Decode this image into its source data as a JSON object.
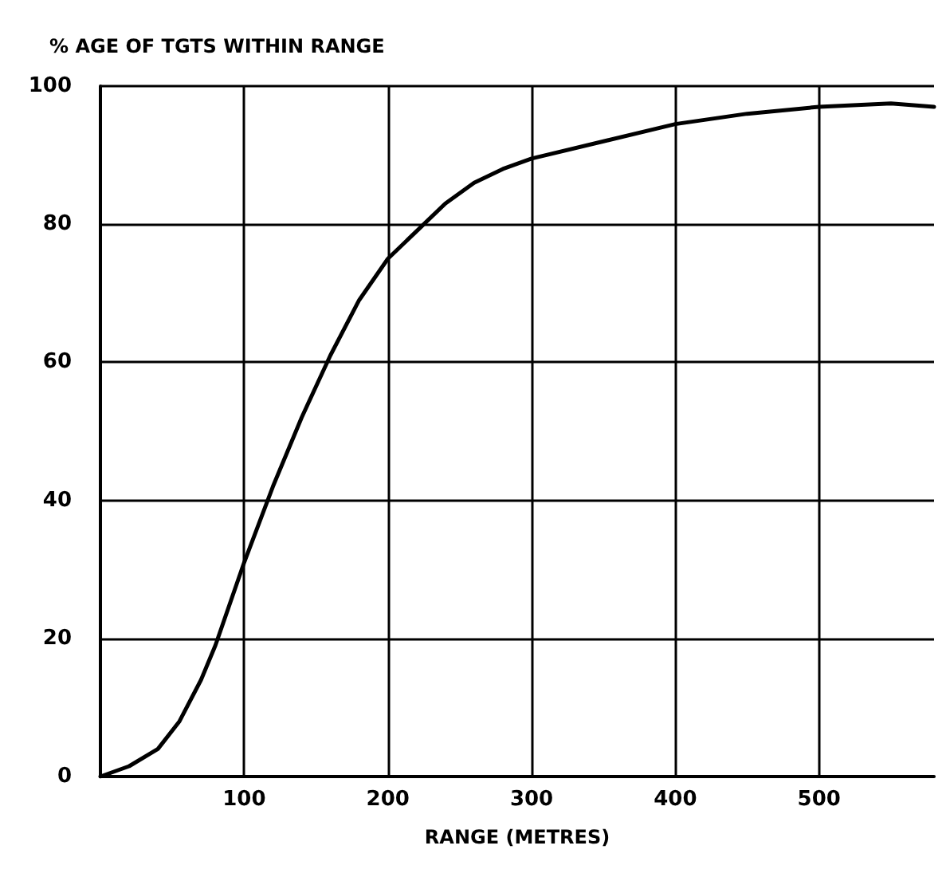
{
  "chart_data": {
    "type": "line",
    "xlabel": "RANGE (METRES)",
    "ylabel": "% AGE OF TGTS WITHIN RANGE",
    "x": [
      0,
      20,
      40,
      55,
      70,
      80,
      100,
      120,
      140,
      160,
      180,
      200,
      220,
      240,
      260,
      280,
      300,
      350,
      400,
      450,
      500,
      550,
      580
    ],
    "series": [
      {
        "color": "#000000",
        "values": [
          0,
          1.5,
          4,
          8,
          14,
          19,
          31,
          42,
          52,
          61,
          69,
          75,
          79,
          83,
          86,
          88,
          89.5,
          92,
          94.5,
          96,
          97,
          97.5,
          97
        ]
      }
    ],
    "xlim": [
      0,
      580
    ],
    "xticks": [
      {
        "value": 0,
        "label": null
      },
      100,
      200,
      300,
      400,
      500
    ],
    "ylim": [
      0,
      100
    ],
    "yticks": [
      0,
      20,
      40,
      60,
      80,
      100
    ],
    "grid": true,
    "marker": "none",
    "line_style": "solid"
  }
}
